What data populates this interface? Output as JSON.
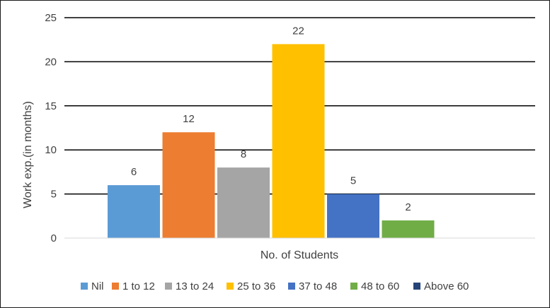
{
  "chart_data": {
    "type": "bar",
    "title": "",
    "xlabel": "No. of Students",
    "ylabel": "Work exp.(in months)",
    "ylim": [
      0,
      25
    ],
    "yticks": [
      0,
      5,
      10,
      15,
      20,
      25
    ],
    "grid": true,
    "legend_position": "bottom",
    "series": [
      {
        "name": "Nil",
        "value": 6,
        "color": "#5B9BD5"
      },
      {
        "name": "1 to 12",
        "value": 12,
        "color": "#ED7D31"
      },
      {
        "name": "13 to 24",
        "value": 8,
        "color": "#A5A5A5"
      },
      {
        "name": "25 to 36",
        "value": 22,
        "color": "#FFC000"
      },
      {
        "name": "37 to 48",
        "value": 5,
        "color": "#4472C4"
      },
      {
        "name": "48 to 60",
        "value": 2,
        "color": "#70AD47"
      },
      {
        "name": "Above 60",
        "value": 0,
        "color": "#264478"
      }
    ]
  }
}
